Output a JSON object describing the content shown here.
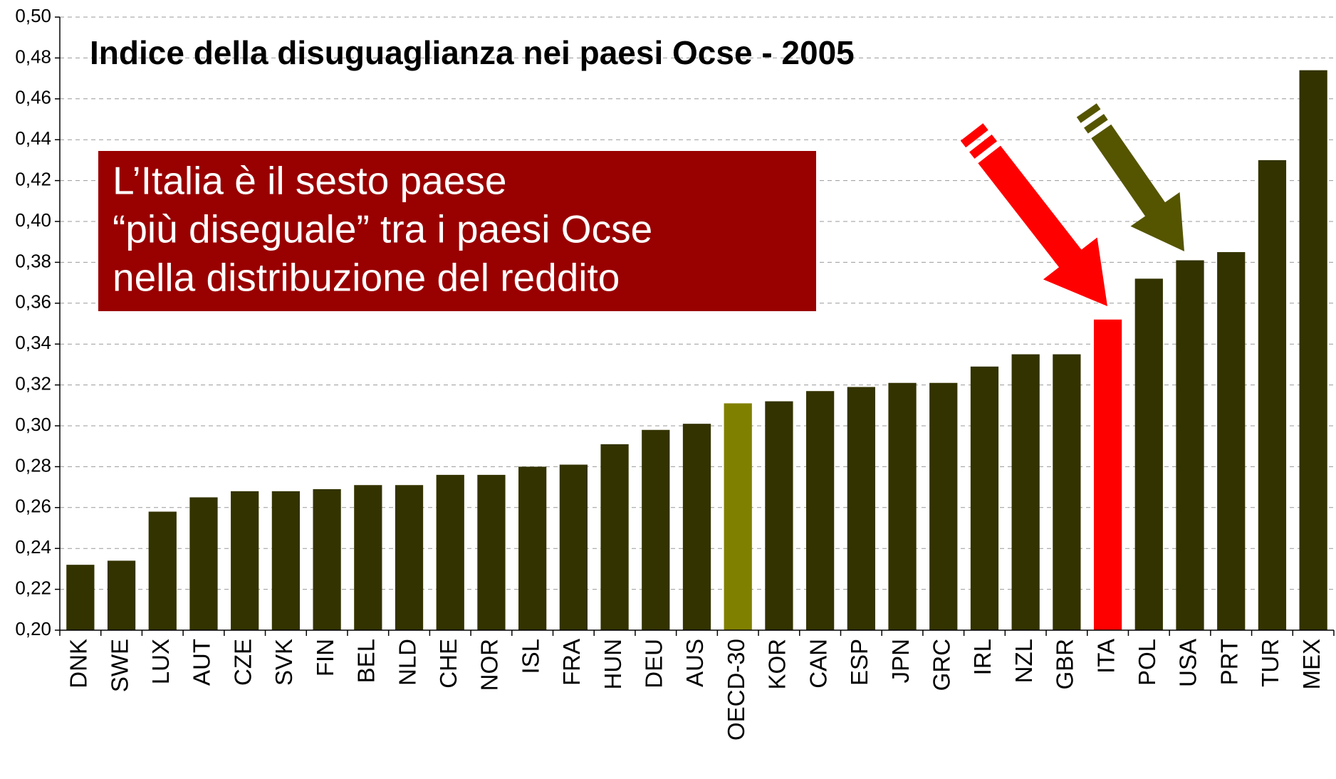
{
  "chart_data": {
    "type": "bar",
    "title": "Indice della disuguaglianza nei paesi Ocse - 2005",
    "annotation": [
      "L’Italia è il sesto paese",
      "“più diseguale” tra i paesi Ocse",
      "nella distribuzione del reddito"
    ],
    "categories": [
      "DNK",
      "SWE",
      "LUX",
      "AUT",
      "CZE",
      "SVK",
      "FIN",
      "BEL",
      "NLD",
      "CHE",
      "NOR",
      "ISL",
      "FRA",
      "HUN",
      "DEU",
      "AUS",
      "OECD-30",
      "KOR",
      "CAN",
      "ESP",
      "JPN",
      "GRC",
      "IRL",
      "NZL",
      "GBR",
      "ITA",
      "POL",
      "USA",
      "PRT",
      "TUR",
      "MEX"
    ],
    "values": [
      0.232,
      0.234,
      0.258,
      0.265,
      0.268,
      0.268,
      0.269,
      0.271,
      0.271,
      0.276,
      0.276,
      0.28,
      0.281,
      0.291,
      0.298,
      0.301,
      0.311,
      0.312,
      0.317,
      0.319,
      0.321,
      0.321,
      0.329,
      0.335,
      0.335,
      0.352,
      0.372,
      0.381,
      0.385,
      0.43,
      0.474
    ],
    "colors": [
      "#333300",
      "#333300",
      "#333300",
      "#333300",
      "#333300",
      "#333300",
      "#333300",
      "#333300",
      "#333300",
      "#333300",
      "#333300",
      "#333300",
      "#333300",
      "#333300",
      "#333300",
      "#333300",
      "#808000",
      "#333300",
      "#333300",
      "#333300",
      "#333300",
      "#333300",
      "#333300",
      "#333300",
      "#333300",
      "#ff0000",
      "#333300",
      "#333300",
      "#333300",
      "#333300",
      "#333300"
    ],
    "ylim": [
      0.2,
      0.5
    ],
    "yticks": [
      {
        "value": 0.2,
        "label": "0,20"
      },
      {
        "value": 0.22,
        "label": "0,22"
      },
      {
        "value": 0.24,
        "label": "0,24"
      },
      {
        "value": 0.26,
        "label": "0,26"
      },
      {
        "value": 0.28,
        "label": "0,28"
      },
      {
        "value": 0.3,
        "label": "0,30"
      },
      {
        "value": 0.32,
        "label": "0,32"
      },
      {
        "value": 0.34,
        "label": "0,34"
      },
      {
        "value": 0.36,
        "label": "0,36"
      },
      {
        "value": 0.38,
        "label": "0,38"
      },
      {
        "value": 0.4,
        "label": "0,40"
      },
      {
        "value": 0.42,
        "label": "0,42"
      },
      {
        "value": 0.44,
        "label": "0,44"
      },
      {
        "value": 0.46,
        "label": "0,46"
      },
      {
        "value": 0.48,
        "label": "0,48"
      },
      {
        "value": 0.5,
        "label": "0,50"
      }
    ],
    "grid": true
  }
}
